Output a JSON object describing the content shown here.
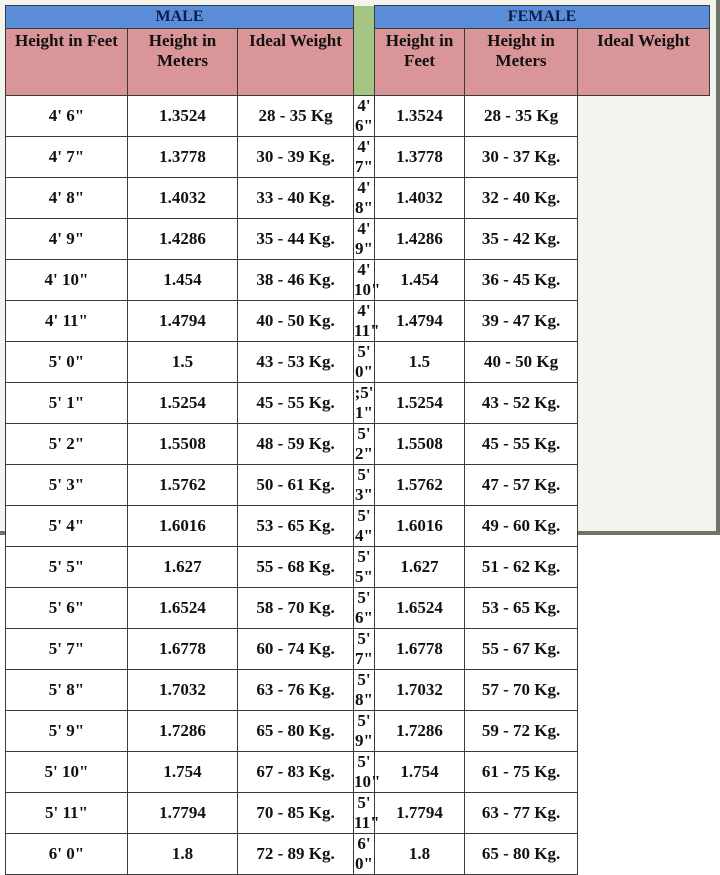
{
  "sections": {
    "male": "MALE",
    "female": "FEMALE"
  },
  "headers": {
    "male": [
      "Height in Feet",
      "Height in Meters",
      "Ideal Weight"
    ],
    "female": [
      "Height in Feet",
      "Height in Meters",
      "Ideal Weight"
    ]
  },
  "colors": {
    "section_header": "#5b8ed8",
    "column_header": "#d99597",
    "divider": "#a6c483"
  },
  "male": [
    [
      "4' 6\"",
      "1.3524",
      "28 - 35 Kg"
    ],
    [
      "4' 7\"",
      "1.3778",
      "30 - 39 Kg."
    ],
    [
      "4' 8\"",
      "1.4032",
      "33 - 40 Kg."
    ],
    [
      "4' 9\"",
      "1.4286",
      "35 - 44 Kg."
    ],
    [
      "4' 10\"",
      "1.454",
      "38 - 46 Kg."
    ],
    [
      "4' 11\"",
      "1.4794",
      "40 - 50 Kg."
    ],
    [
      "5' 0\"",
      "1.5",
      "43 - 53 Kg."
    ],
    [
      "5' 1\"",
      "1.5254",
      "45 - 55 Kg."
    ],
    [
      "5' 2\"",
      "1.5508",
      "48 - 59 Kg."
    ],
    [
      "5' 3\"",
      "1.5762",
      "50 - 61 Kg."
    ],
    [
      "5' 4\"",
      "1.6016",
      "53 - 65 Kg."
    ],
    [
      "5' 5\"",
      "1.627",
      "55 - 68 Kg."
    ],
    [
      "5' 6\"",
      "1.6524",
      "58 - 70 Kg."
    ],
    [
      "5' 7\"",
      "1.6778",
      "60 - 74 Kg."
    ],
    [
      "5' 8\"",
      "1.7032",
      "63 - 76 Kg."
    ],
    [
      "5' 9\"",
      "1.7286",
      "65 - 80 Kg."
    ],
    [
      "5' 10\"",
      "1.754",
      "67 - 83 Kg."
    ],
    [
      "5' 11\"",
      "1.7794",
      "70 - 85 Kg."
    ],
    [
      "6' 0\"",
      "1.8",
      "72 - 89 Kg."
    ]
  ],
  "female": [
    [
      "4' 6\"",
      "1.3524",
      "28 - 35 Kg"
    ],
    [
      "4' 7\"",
      "1.3778",
      "30 - 37 Kg."
    ],
    [
      "4' 8\"",
      "1.4032",
      "32 - 40 Kg."
    ],
    [
      "4' 9\"",
      "1.4286",
      "35 - 42 Kg."
    ],
    [
      "4' 10\"",
      "1.454",
      "36 - 45 Kg."
    ],
    [
      "4' 11\"",
      "1.4794",
      "39 - 47 Kg."
    ],
    [
      "5' 0\"",
      "1.5",
      "40 - 50 Kg"
    ],
    [
      ";5' 1\"",
      "1.5254",
      "43 - 52 Kg."
    ],
    [
      "5' 2\"",
      "1.5508",
      "45 - 55 Kg."
    ],
    [
      "5' 3\"",
      "1.5762",
      "47 - 57 Kg."
    ],
    [
      "5' 4\"",
      "1.6016",
      "49 - 60 Kg."
    ],
    [
      "5' 5\"",
      "1.627",
      "51 - 62 Kg."
    ],
    [
      "5' 6\"",
      "1.6524",
      "53 - 65 Kg."
    ],
    [
      "5' 7\"",
      "1.6778",
      "55 - 67 Kg."
    ],
    [
      "5' 8\"",
      "1.7032",
      "57 - 70 Kg."
    ],
    [
      "5' 9\"",
      "1.7286",
      "59 - 72 Kg."
    ],
    [
      "5' 10\"",
      "1.754",
      "61 - 75 Kg."
    ],
    [
      "5' 11\"",
      "1.7794",
      "63 - 77 Kg."
    ],
    [
      "6' 0\"",
      "1.8",
      "65 - 80 Kg."
    ]
  ]
}
